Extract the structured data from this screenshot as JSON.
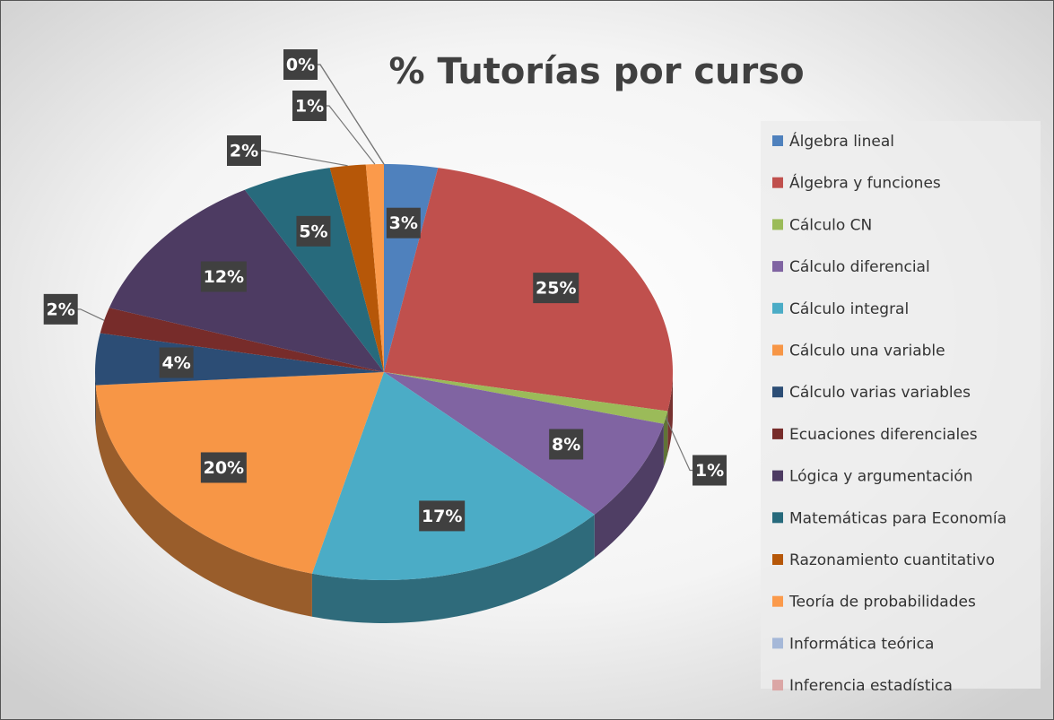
{
  "chart_data": {
    "type": "pie",
    "title": "% Tutorías por curso",
    "categories": [
      "Álgebra lineal",
      "Álgebra y funciones",
      "Cálculo CN",
      "Cálculo diferencial",
      "Cálculo integral",
      "Cálculo una variable",
      "Cálculo varias variables",
      "Ecuaciones diferenciales",
      "Lógica y argumentación",
      "Matemáticas para Economía",
      "Razonamiento cuantitativo",
      "Teoría de probabilidades",
      "Informática teórica",
      "Inferencia estadística"
    ],
    "values": [
      3,
      25,
      1,
      8,
      17,
      20,
      4,
      2,
      12,
      5,
      2,
      1,
      0,
      0
    ],
    "value_labels": [
      "3%",
      "25%",
      "1%",
      "8%",
      "17%",
      "20%",
      "4%",
      "2%",
      "12%",
      "5%",
      "2%",
      "1%",
      "0%",
      "0%"
    ],
    "colors": [
      "#4f81bd",
      "#c0504d",
      "#9bbb59",
      "#8064a2",
      "#4bacc6",
      "#f79646",
      "#2c4d75",
      "#772c2a",
      "#4d3b62",
      "#276a7c",
      "#b65708",
      "#fb9a4b",
      "#a5b8d8",
      "#dba6a5"
    ],
    "legend": "right"
  }
}
